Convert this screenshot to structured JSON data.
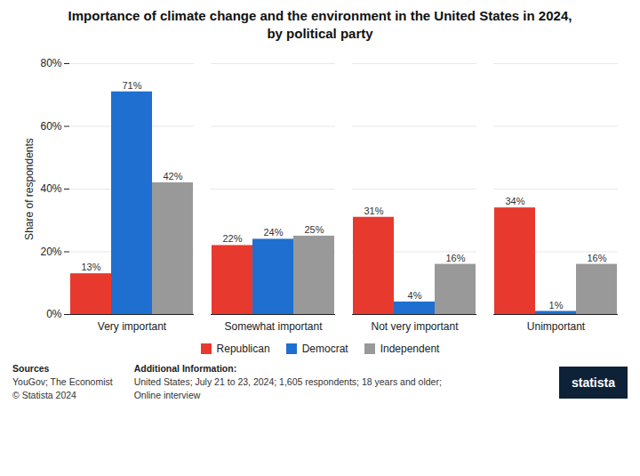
{
  "chart_data": {
    "type": "bar",
    "title": "Importance of climate change and the environment in the United States in 2024,\nby political party",
    "categories": [
      "Very important",
      "Somewhat important",
      "Not very important",
      "Unimportant"
    ],
    "series": [
      {
        "name": "Republican",
        "color": "#e8392e",
        "values": [
          13,
          22,
          31,
          34
        ],
        "value_labels": [
          "13%",
          "22%",
          "31%",
          "34%"
        ]
      },
      {
        "name": "Democrat",
        "color": "#1f6fd0",
        "values": [
          71,
          24,
          4,
          1
        ],
        "value_labels": [
          "71%",
          "24%",
          "4%",
          "1%"
        ]
      },
      {
        "name": "Independent",
        "color": "#999999",
        "values": [
          42,
          25,
          16,
          16
        ],
        "value_labels": [
          "42%",
          "25%",
          "16%",
          "16%"
        ]
      }
    ],
    "ylabel": "Share of respondents",
    "ylim": [
      0,
      80
    ],
    "yticks": [
      {
        "value": 0,
        "label": "0%"
      },
      {
        "value": 20,
        "label": "20%"
      },
      {
        "value": 40,
        "label": "40%"
      },
      {
        "value": 60,
        "label": "60%"
      },
      {
        "value": 80,
        "label": "80%"
      }
    ],
    "grid": true,
    "legend": "bottom",
    "data_labels": true,
    "annotations": [
      {
        "title": "Sources",
        "text": "YouGov; The Economist\n© Statista 2024"
      },
      {
        "title": "Additional Information:",
        "text": "United States; July 21 to 23, 2024; 1,605 respondents; 18 years and older;\nOnline interview"
      },
      {
        "text": "statista"
      }
    ]
  }
}
